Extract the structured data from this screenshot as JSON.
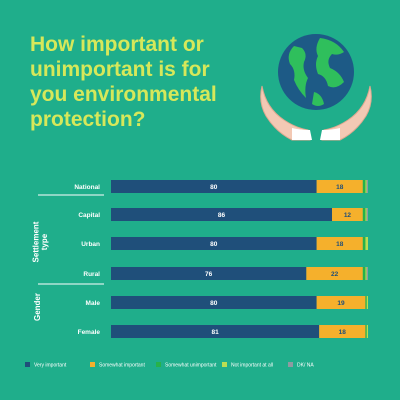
{
  "title": "How important or unimportant is for you environmental protection?",
  "colors": {
    "background": "#1fae8b",
    "title": "#d6e85a",
    "very_important": "#1f4f7a",
    "somewhat_important": "#f5b02c",
    "somewhat_unimportant": "#27b24a",
    "not_important_at_all": "#b9de52",
    "dk_na": "#8f9aa1"
  },
  "chart_data": {
    "type": "bar",
    "orientation": "horizontal",
    "stacked": true,
    "percent": true,
    "xlim": [
      0,
      100
    ],
    "grid": false,
    "legend_position": "bottom",
    "categories": [
      "National",
      "Capital",
      "Urban",
      "Rural",
      "Male",
      "Female"
    ],
    "groups": [
      {
        "label": "Settlement type",
        "categories": [
          "Capital",
          "Urban",
          "Rural"
        ]
      },
      {
        "label": "Gender",
        "categories": [
          "Male",
          "Female"
        ]
      }
    ],
    "series": [
      {
        "name": "Very important",
        "color": "#1f4f7a",
        "values": [
          80,
          86,
          80,
          76,
          80,
          81
        ]
      },
      {
        "name": "Somewhat important",
        "color": "#f5b02c",
        "values": [
          18,
          12,
          18,
          22,
          19,
          18
        ]
      },
      {
        "name": "Somewhat unimportant",
        "color": "#27b24a",
        "values": [
          1,
          1,
          1,
          1,
          0.5,
          0.5
        ]
      },
      {
        "name": "Not important at all",
        "color": "#b9de52",
        "values": [
          0.5,
          0.5,
          1,
          0.5,
          0.5,
          0.5
        ]
      },
      {
        "name": "DK/ NA",
        "color": "#8f9aa1",
        "values": [
          0.5,
          0.5,
          0,
          0.5,
          0,
          0
        ]
      }
    ],
    "data_labels": [
      [
        "80",
        "86",
        "80",
        "76",
        "80",
        "81"
      ],
      [
        "18",
        "12",
        "18",
        "22",
        "19",
        "18"
      ]
    ]
  }
}
